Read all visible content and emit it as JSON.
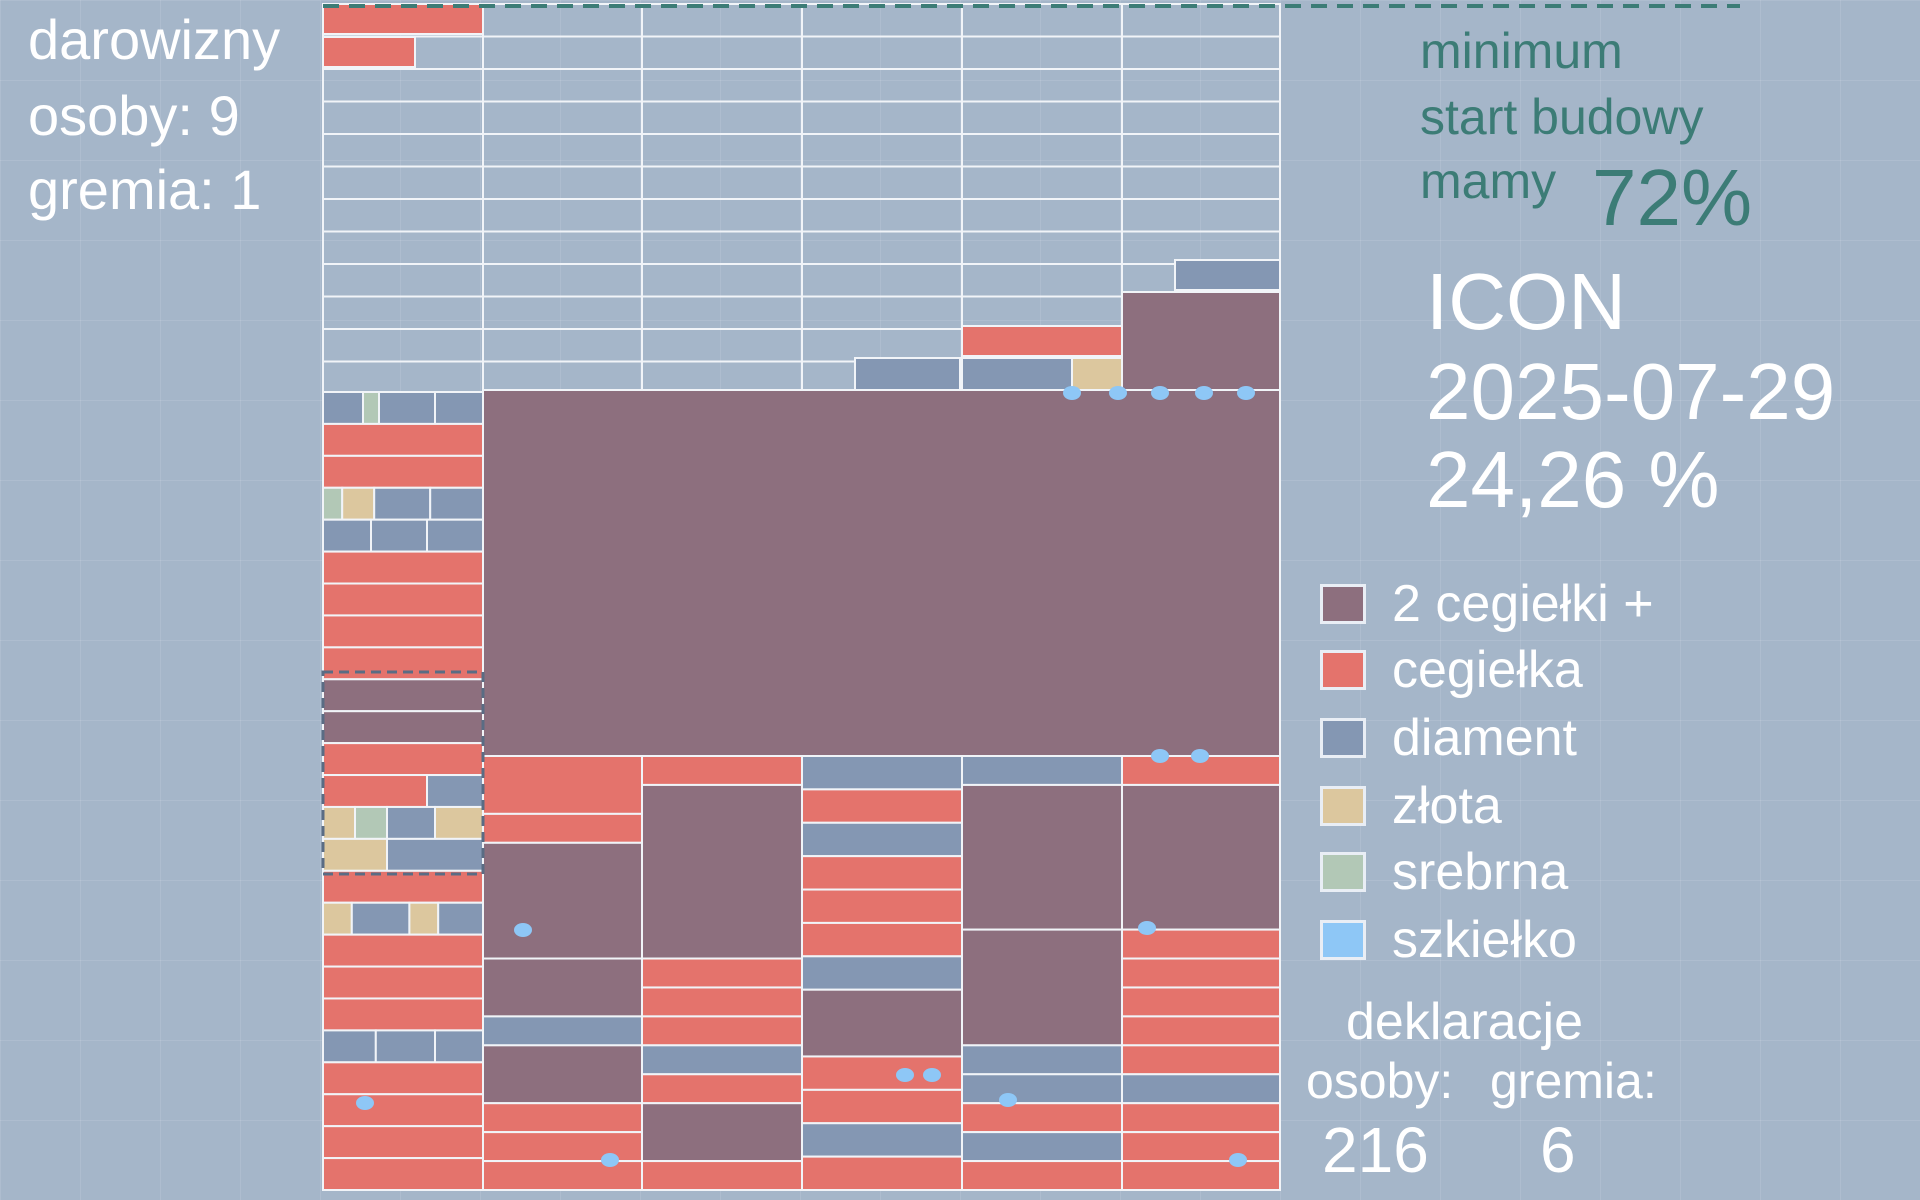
{
  "top_left": {
    "title": "darowizny",
    "persons_label": "osoby:",
    "persons_value": "9",
    "boards_label": "gremia:",
    "boards_value": "1"
  },
  "goal": {
    "line1": "minimum",
    "line2": "start budowy",
    "line3": "mamy",
    "percent": "72%"
  },
  "status": {
    "name": "ICON",
    "date": "2025-07-29",
    "percent": "24,26 %"
  },
  "legend": [
    {
      "label": "2 cegiełki +",
      "color": "#8d6f7e"
    },
    {
      "label": "cegiełka",
      "color": "#e4736c"
    },
    {
      "label": "diament",
      "color": "#8497b3"
    },
    {
      "label": "złota",
      "color": "#dcc79e"
    },
    {
      "label": "srebrna",
      "color": "#b2c8b6"
    },
    {
      "label": "szkiełko",
      "color": "#8ec7f6"
    }
  ],
  "declarations": {
    "title": "deklaracje",
    "persons_label": "osoby:",
    "boards_label": "gremia:",
    "persons_value": "216",
    "boards_value": "6"
  },
  "colors": {
    "background": "#a5b6c9",
    "grid_line": "#f1f4f8",
    "plum": "#8d6f7e",
    "salmon": "#e4736c",
    "diamond": "#8497b3",
    "gold": "#dcc79e",
    "silver": "#b2c8b6",
    "glass": "#8ec7f6",
    "accent_teal": "#3c7c76"
  }
}
